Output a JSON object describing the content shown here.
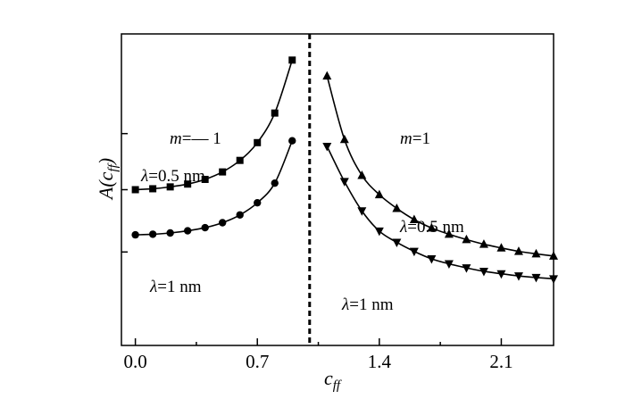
{
  "chart_data": {
    "type": "line",
    "xlabel": {
      "main": "c",
      "sub": "ff"
    },
    "ylabel": {
      "main": "A(c",
      "sub": "ff",
      "close": ")"
    },
    "xlim": [
      -0.08,
      2.4
    ],
    "ylim": [
      0,
      1
    ],
    "x_ticks": [
      {
        "value": 0.0,
        "label": "0.0"
      },
      {
        "value": 0.7,
        "label": "0.7"
      },
      {
        "value": 1.4,
        "label": "1.4"
      },
      {
        "value": 2.1,
        "label": "2.1"
      }
    ],
    "x_minor_ticks": [
      0.35,
      1.05,
      1.75
    ],
    "y_ticks": [
      0.3,
      0.5,
      0.68
    ],
    "y_tick_labels": false,
    "grid": false,
    "divider": {
      "x": 1.0,
      "style": "dashed"
    },
    "series": [
      {
        "marker": "square",
        "x": [
          0.0,
          0.1,
          0.2,
          0.3,
          0.4,
          0.5,
          0.6,
          0.7,
          0.8,
          0.9
        ],
        "y": [
          0.5,
          0.503,
          0.509,
          0.518,
          0.533,
          0.557,
          0.594,
          0.651,
          0.746,
          0.916
        ]
      },
      {
        "marker": "circle",
        "x": [
          0.0,
          0.1,
          0.2,
          0.3,
          0.4,
          0.5,
          0.6,
          0.7,
          0.8,
          0.9
        ],
        "y": [
          0.355,
          0.357,
          0.361,
          0.368,
          0.378,
          0.394,
          0.419,
          0.458,
          0.521,
          0.657
        ]
      },
      {
        "marker": "triangle-up",
        "x": [
          1.1,
          1.2,
          1.3,
          1.4,
          1.5,
          1.6,
          1.7,
          1.8,
          1.9,
          2.0,
          2.1,
          2.2,
          2.3,
          2.4
        ],
        "y": [
          0.865,
          0.661,
          0.546,
          0.484,
          0.44,
          0.404,
          0.377,
          0.357,
          0.34,
          0.325,
          0.313,
          0.302,
          0.294,
          0.287
        ]
      },
      {
        "marker": "triangle-down",
        "x": [
          1.1,
          1.2,
          1.3,
          1.4,
          1.5,
          1.6,
          1.7,
          1.8,
          1.9,
          2.0,
          2.1,
          2.2,
          2.3,
          2.4
        ],
        "y": [
          0.639,
          0.526,
          0.432,
          0.367,
          0.331,
          0.302,
          0.278,
          0.262,
          0.249,
          0.238,
          0.23,
          0.223,
          0.218,
          0.214
        ]
      }
    ],
    "annotations": {
      "m_left": {
        "symbol": "m",
        "text": "=— 1"
      },
      "m_right": {
        "symbol": "m",
        "text": "=1"
      },
      "lambda_left_top": {
        "symbol": "λ",
        "text": "=0.5 nm"
      },
      "lambda_left_bottom": {
        "symbol": "λ",
        "text": "=1 nm"
      },
      "lambda_right_top": {
        "symbol": "λ",
        "text": "=0.5 nm"
      },
      "lambda_right_bottom": {
        "symbol": "λ",
        "text": "=1 nm"
      }
    },
    "line_color": "#000000"
  }
}
